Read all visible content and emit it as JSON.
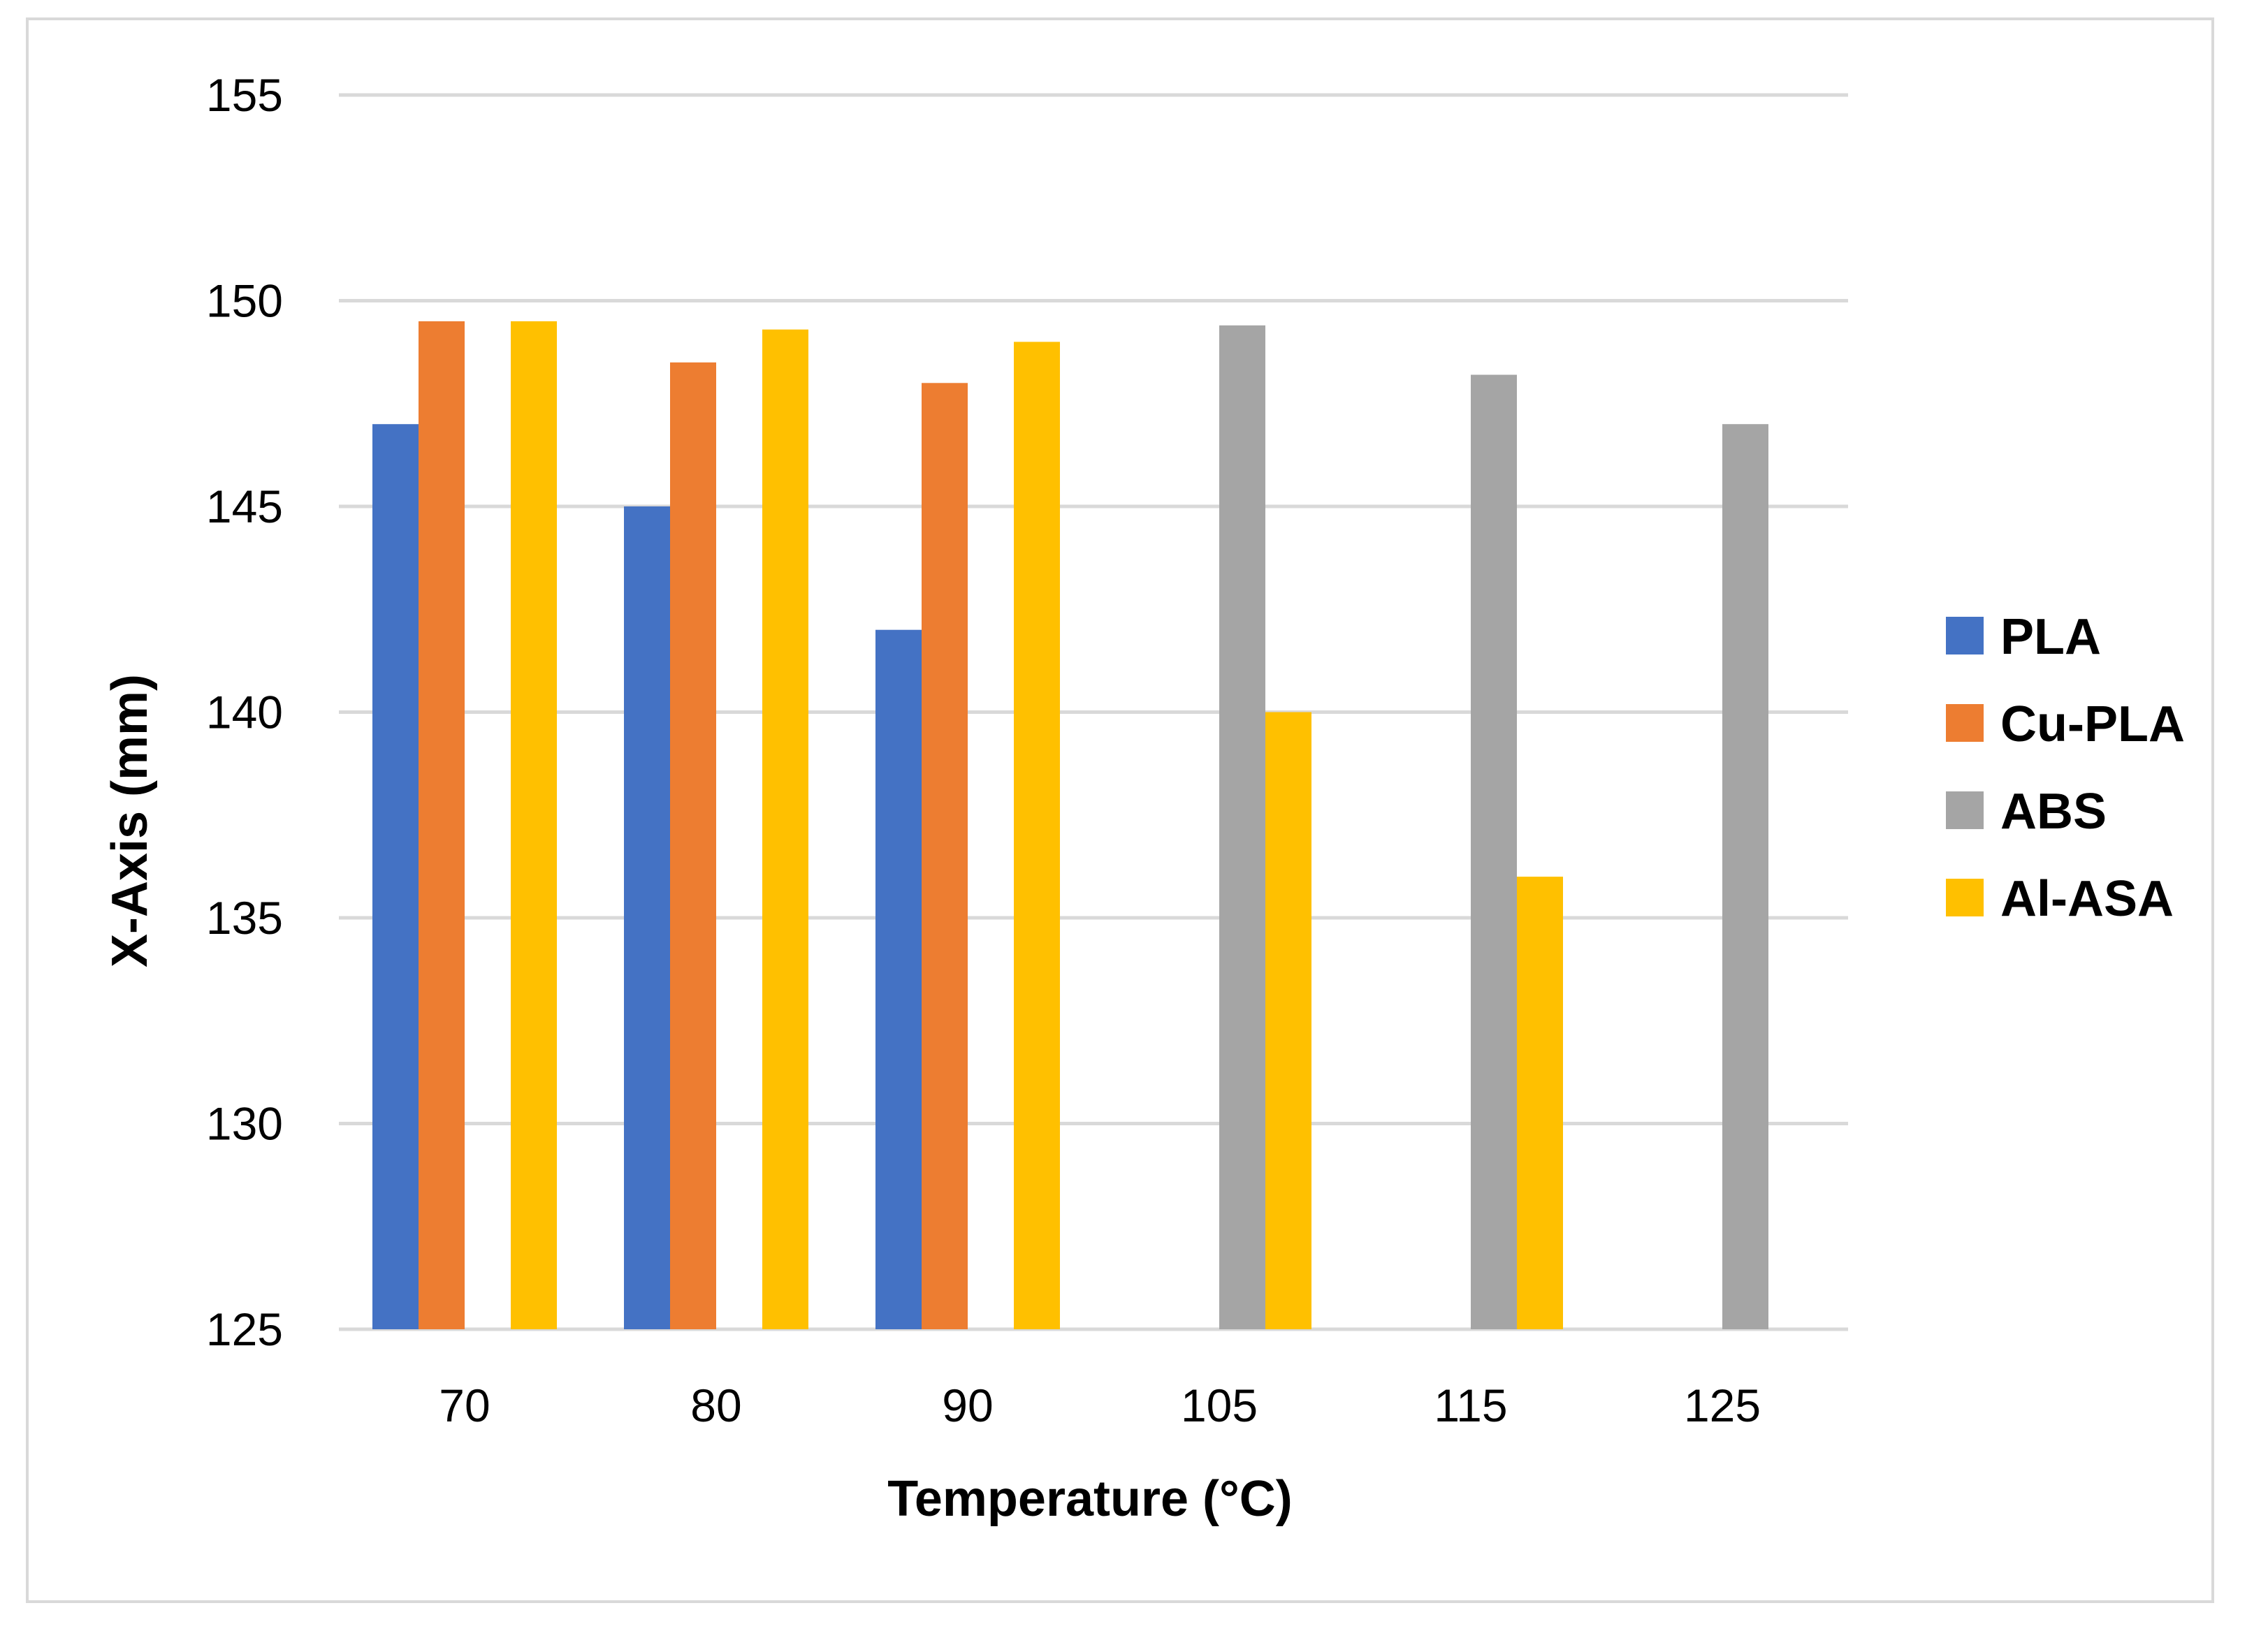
{
  "chart_data": {
    "type": "bar",
    "title": "",
    "xlabel": "Temperature (°C)",
    "ylabel": "X-Axis (mm)",
    "categories": [
      "70",
      "80",
      "90",
      "105",
      "115",
      "125"
    ],
    "ylim": [
      125,
      155
    ],
    "yticks": [
      125,
      130,
      135,
      140,
      145,
      150,
      155
    ],
    "grid": true,
    "legend_position": "right",
    "series": [
      {
        "name": "PLA",
        "color": "#4472c4",
        "values": [
          147,
          145,
          142,
          null,
          null,
          null
        ]
      },
      {
        "name": "Cu-PLA",
        "color": "#ed7d31",
        "values": [
          149.5,
          148.5,
          148,
          null,
          null,
          null
        ]
      },
      {
        "name": "ABS",
        "color": "#a5a5a5",
        "values": [
          null,
          null,
          null,
          149.4,
          148.2,
          147
        ]
      },
      {
        "name": "Al-ASA",
        "color": "#ffc000",
        "values": [
          149.5,
          149.3,
          149,
          140,
          136,
          null
        ]
      }
    ]
  }
}
